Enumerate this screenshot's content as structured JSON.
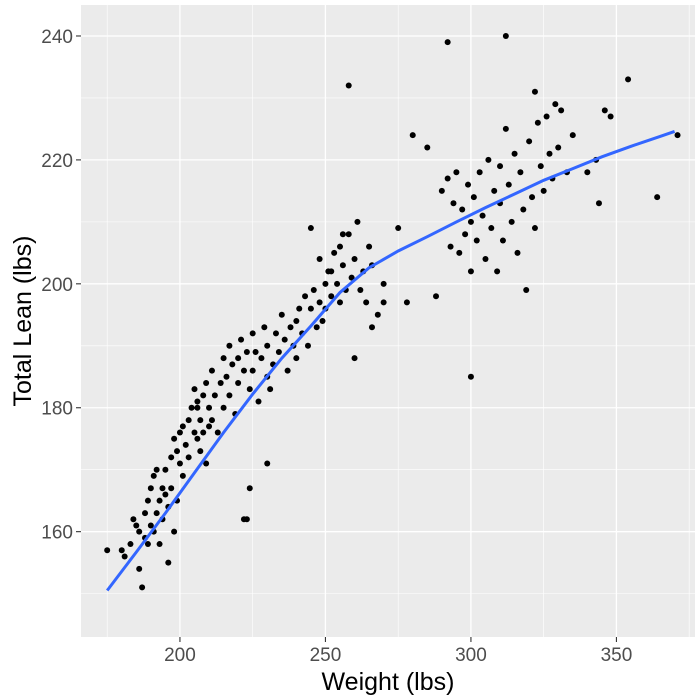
{
  "chart_data": {
    "type": "scatter",
    "xlabel": "Weight (lbs)",
    "ylabel": "Total Lean (lbs)",
    "xlim": [
      166,
      377
    ],
    "ylim": [
      143,
      245
    ],
    "x_ticks": [
      200,
      250,
      300,
      350
    ],
    "y_ticks": [
      160,
      180,
      200,
      220,
      240
    ],
    "x_tick_labels": [
      "200",
      "250",
      "300",
      "350"
    ],
    "y_tick_labels": [
      "160",
      "180",
      "200",
      "220",
      "240"
    ],
    "grid": true,
    "legend": "none",
    "colors": {
      "panel_background": "#ebebeb",
      "grid": "#ffffff",
      "points": "#000000",
      "smooth_line": "#3366ff",
      "tick_text": "#4d4d4d"
    },
    "series": [
      {
        "kind": "points",
        "x": [
          175,
          180,
          181,
          183,
          184,
          185,
          186,
          186,
          187,
          188,
          188,
          189,
          189,
          190,
          190,
          191,
          191,
          192,
          192,
          193,
          193,
          194,
          194,
          195,
          195,
          196,
          196,
          197,
          197,
          198,
          198,
          199,
          199,
          200,
          200,
          201,
          201,
          202,
          203,
          203,
          204,
          205,
          205,
          206,
          206,
          207,
          207,
          208,
          208,
          209,
          209,
          210,
          211,
          211,
          212,
          213,
          214,
          215,
          215,
          216,
          217,
          217,
          218,
          219,
          220,
          220,
          221,
          222,
          222,
          223,
          224,
          225,
          225,
          226,
          227,
          228,
          229,
          230,
          230,
          231,
          232,
          233,
          234,
          235,
          236,
          237,
          238,
          239,
          240,
          240,
          241,
          242,
          243,
          244,
          245,
          246,
          247,
          248,
          249,
          250,
          250,
          251,
          252,
          253,
          254,
          255,
          255,
          256,
          257,
          258,
          259,
          260,
          261,
          262,
          263,
          264,
          265,
          266,
          268,
          270,
          275,
          278,
          280,
          285,
          288,
          290,
          292,
          293,
          294,
          295,
          296,
          297,
          298,
          299,
          300,
          300,
          301,
          302,
          303,
          304,
          305,
          306,
          307,
          308,
          309,
          310,
          310,
          311,
          312,
          313,
          314,
          315,
          316,
          317,
          318,
          319,
          320,
          321,
          322,
          323,
          324,
          325,
          326,
          327,
          328,
          329,
          330,
          331,
          333,
          335,
          340,
          343,
          344,
          346,
          348,
          354,
          364,
          371,
          292,
          312,
          258,
          300,
          322,
          223,
          224,
          230,
          210,
          206,
          245,
          248,
          252,
          256,
          260,
          266,
          270
        ],
        "y": [
          157,
          157,
          156,
          158,
          162,
          161,
          160,
          154,
          151,
          159,
          163,
          158,
          165,
          161,
          167,
          160,
          169,
          163,
          170,
          165,
          158,
          167,
          162,
          170,
          166,
          164,
          155,
          172,
          167,
          160,
          175,
          165,
          173,
          171,
          176,
          169,
          177,
          174,
          178,
          172,
          180,
          176,
          183,
          175,
          181,
          178,
          173,
          182,
          176,
          184,
          171,
          180,
          178,
          186,
          182,
          176,
          184,
          188,
          180,
          185,
          182,
          190,
          187,
          179,
          188,
          184,
          191,
          186,
          162,
          189,
          183,
          192,
          186,
          189,
          181,
          188,
          193,
          185,
          190,
          183,
          187,
          192,
          189,
          195,
          191,
          186,
          193,
          190,
          194,
          188,
          196,
          192,
          198,
          190,
          196,
          199,
          193,
          197,
          194,
          200,
          196,
          202,
          198,
          205,
          200,
          197,
          206,
          203,
          199,
          208,
          201,
          204,
          210,
          199,
          202,
          197,
          206,
          203,
          195,
          197,
          209,
          197,
          224,
          222,
          198,
          215,
          217,
          206,
          213,
          218,
          205,
          212,
          208,
          216,
          202,
          210,
          214,
          207,
          218,
          211,
          204,
          220,
          209,
          215,
          202,
          219,
          213,
          207,
          225,
          216,
          210,
          221,
          205,
          218,
          212,
          199,
          223,
          214,
          209,
          226,
          219,
          215,
          227,
          221,
          217,
          229,
          222,
          228,
          218,
          224,
          218,
          220,
          213,
          228,
          227,
          233,
          214,
          224,
          239,
          240,
          232,
          185,
          231,
          162,
          167,
          171,
          177,
          180,
          209,
          204,
          202,
          208,
          188,
          193,
          200
        ]
      },
      {
        "kind": "smooth",
        "x": [
          175,
          185,
          195,
          205,
          215,
          225,
          235,
          245,
          255,
          265,
          275,
          285,
          295,
          305,
          315,
          325,
          335,
          345,
          355,
          365,
          370
        ],
        "y": [
          150.5,
          156.7,
          163.0,
          169.5,
          176.0,
          182.2,
          188.0,
          193.2,
          198.6,
          202.6,
          205.3,
          207.6,
          210.0,
          212.3,
          214.5,
          216.7,
          218.6,
          220.5,
          222.2,
          223.8,
          224.6
        ]
      }
    ]
  }
}
